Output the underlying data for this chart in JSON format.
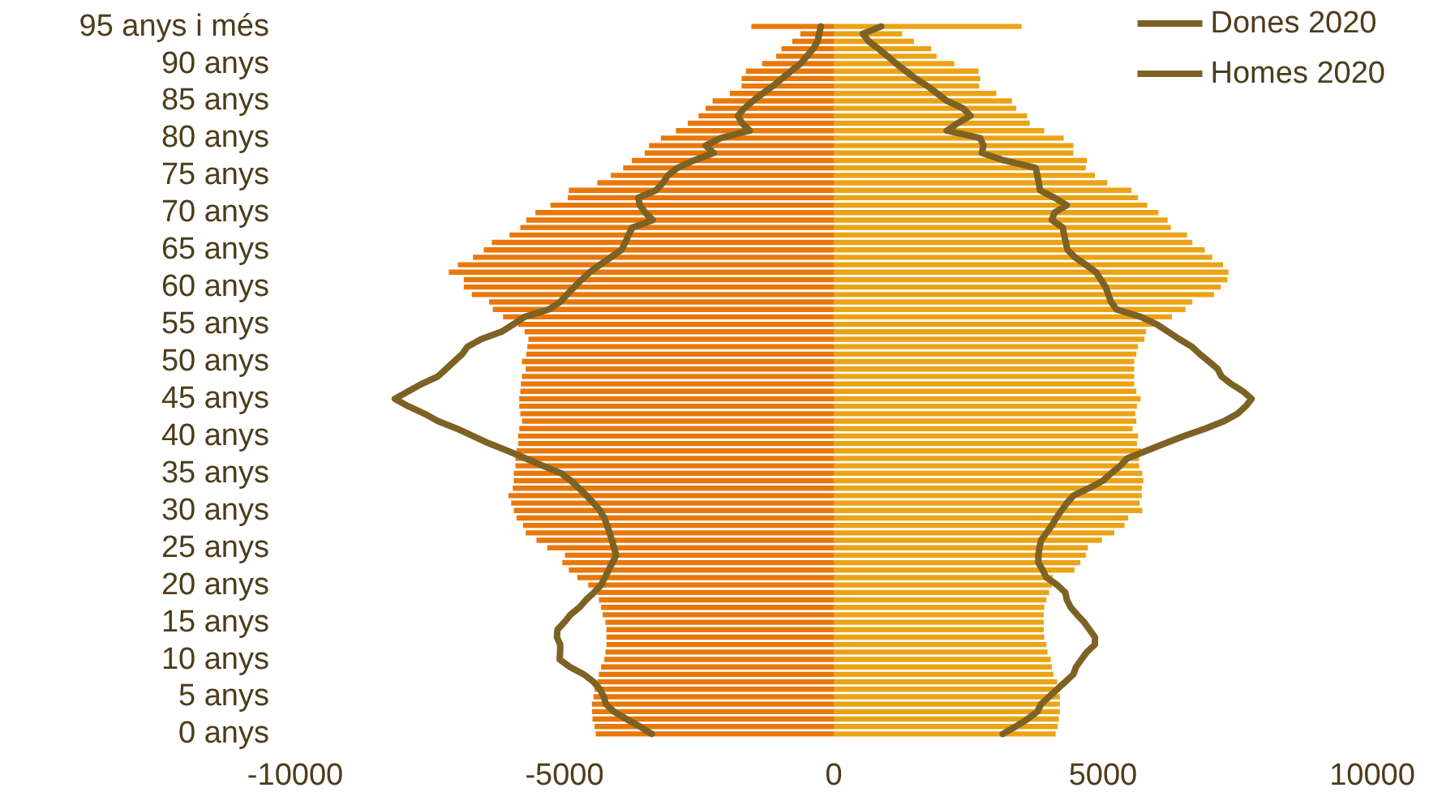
{
  "chart_data": {
    "type": "bar",
    "orientation": "horizontal",
    "categories": [
      "95 anys i més",
      null,
      null,
      null,
      null,
      "90 anys",
      null,
      null,
      null,
      null,
      "85 anys",
      null,
      null,
      null,
      null,
      "80 anys",
      null,
      null,
      null,
      null,
      "75 anys",
      null,
      null,
      null,
      null,
      "70 anys",
      null,
      null,
      null,
      null,
      "65 anys",
      null,
      null,
      null,
      null,
      "60 anys",
      null,
      null,
      null,
      null,
      "55 anys",
      null,
      null,
      null,
      null,
      "50 anys",
      null,
      null,
      null,
      null,
      "45 anys",
      null,
      null,
      null,
      null,
      "40 anys",
      null,
      null,
      null,
      null,
      "35 anys",
      null,
      null,
      null,
      null,
      "30 anys",
      null,
      null,
      null,
      null,
      "25 anys",
      null,
      null,
      null,
      null,
      "20 anys",
      null,
      null,
      null,
      null,
      "15 anys",
      null,
      null,
      null,
      null,
      "10 anys",
      null,
      null,
      null,
      null,
      "5 anys",
      null,
      null,
      null,
      null,
      "0 anys"
    ],
    "series": [
      {
        "color": "#e8780a",
        "values": [
          -1530,
          -620,
          -770,
          -970,
          -1070,
          -1330,
          -1630,
          -1710,
          -1710,
          -1930,
          -2250,
          -2380,
          -2510,
          -2710,
          -2930,
          -3210,
          -3430,
          -3510,
          -3750,
          -3910,
          -4140,
          -4390,
          -4920,
          -4940,
          -5260,
          -5540,
          -5710,
          -5820,
          -6020,
          -6350,
          -6500,
          -6700,
          -6980,
          -7150,
          -6870,
          -6870,
          -6720,
          -6400,
          -6330,
          -6140,
          -5860,
          -5740,
          -5670,
          -5690,
          -5710,
          -5790,
          -5720,
          -5790,
          -5810,
          -5820,
          -5840,
          -5840,
          -5820,
          -5790,
          -5840,
          -5860,
          -5860,
          -5890,
          -5910,
          -5910,
          -5940,
          -5940,
          -5960,
          -6040,
          -5990,
          -5940,
          -5890,
          -5770,
          -5720,
          -5520,
          -5320,
          -4990,
          -5040,
          -4920,
          -4760,
          -4560,
          -4390,
          -4360,
          -4320,
          -4290,
          -4240,
          -4220,
          -4220,
          -4220,
          -4240,
          -4260,
          -4320,
          -4360,
          -4390,
          -4440,
          -4460,
          -4490,
          -4490,
          -4480,
          -4440,
          -4420
        ]
      },
      {
        "color": "#eba316",
        "values": [
          3490,
          1270,
          1490,
          1810,
          1910,
          2240,
          2690,
          2720,
          2700,
          3020,
          3310,
          3390,
          3590,
          3640,
          3910,
          4270,
          4450,
          4450,
          4700,
          4680,
          4850,
          5080,
          5530,
          5650,
          5820,
          6030,
          6200,
          6260,
          6560,
          6660,
          6890,
          7030,
          7230,
          7330,
          7310,
          7190,
          7060,
          6660,
          6530,
          6280,
          5950,
          5800,
          5770,
          5650,
          5620,
          5580,
          5580,
          5580,
          5580,
          5620,
          5700,
          5630,
          5600,
          5620,
          5550,
          5650,
          5630,
          5710,
          5670,
          5670,
          5730,
          5750,
          5720,
          5720,
          5680,
          5730,
          5470,
          5400,
          5210,
          4980,
          4720,
          4680,
          4580,
          4470,
          4070,
          4050,
          4000,
          3950,
          3910,
          3900,
          3900,
          3900,
          3910,
          3950,
          3970,
          4030,
          4050,
          4080,
          4150,
          4180,
          4200,
          4200,
          4200,
          4180,
          4160,
          4120
        ]
      },
      {
        "type": "line",
        "name": "Dones 2020",
        "color": "#7d6224",
        "values": [
          880,
          540,
          650,
          830,
          1000,
          1160,
          1340,
          1520,
          1740,
          1920,
          2100,
          2400,
          2540,
          2300,
          2100,
          2720,
          2780,
          2750,
          3170,
          3750,
          3780,
          3810,
          3830,
          4100,
          4330,
          4100,
          4050,
          4250,
          4280,
          4310,
          4340,
          4480,
          4680,
          4870,
          4960,
          5050,
          5100,
          5150,
          5250,
          5700,
          6000,
          6210,
          6420,
          6650,
          6800,
          6970,
          7130,
          7200,
          7380,
          7600,
          7760,
          7650,
          7500,
          7250,
          6900,
          6500,
          6150,
          5800,
          5450,
          5320,
          5150,
          5000,
          4740,
          4450,
          4330,
          4230,
          4130,
          4050,
          3950,
          3850,
          3820,
          3800,
          3800,
          3880,
          3950,
          4150,
          4300,
          4330,
          4400,
          4520,
          4650,
          4750,
          4850,
          4850,
          4700,
          4600,
          4500,
          4450,
          4300,
          4150,
          4000,
          3850,
          3780,
          3600,
          3380,
          3140
        ]
      },
      {
        "type": "line",
        "name": "Homes 2020",
        "color": "#7d6224",
        "values": [
          -240,
          -270,
          -300,
          -380,
          -500,
          -620,
          -790,
          -960,
          -1130,
          -1320,
          -1500,
          -1660,
          -1780,
          -1700,
          -1560,
          -2100,
          -2380,
          -2230,
          -2600,
          -2900,
          -3080,
          -3170,
          -3300,
          -3630,
          -3600,
          -3500,
          -3360,
          -3740,
          -3810,
          -3870,
          -3940,
          -4140,
          -4340,
          -4530,
          -4680,
          -4820,
          -4950,
          -5080,
          -5290,
          -5740,
          -5950,
          -6170,
          -6550,
          -6800,
          -6900,
          -7050,
          -7200,
          -7350,
          -7650,
          -7900,
          -8150,
          -7900,
          -7600,
          -7350,
          -7000,
          -6700,
          -6400,
          -6050,
          -5720,
          -5400,
          -5060,
          -4880,
          -4730,
          -4590,
          -4460,
          -4340,
          -4260,
          -4210,
          -4160,
          -4120,
          -4080,
          -4040,
          -4110,
          -4180,
          -4250,
          -4320,
          -4450,
          -4600,
          -4720,
          -4890,
          -5000,
          -5130,
          -5140,
          -5080,
          -5080,
          -5090,
          -4900,
          -4640,
          -4460,
          -4340,
          -4270,
          -4230,
          -4080,
          -3850,
          -3600,
          -3380
        ]
      }
    ],
    "xlim": [
      -10000,
      10000
    ],
    "xticks": [
      -10000,
      -5000,
      0,
      5000,
      10000
    ],
    "stacked": true,
    "grid": false,
    "legend": "top right",
    "marker": "none"
  }
}
